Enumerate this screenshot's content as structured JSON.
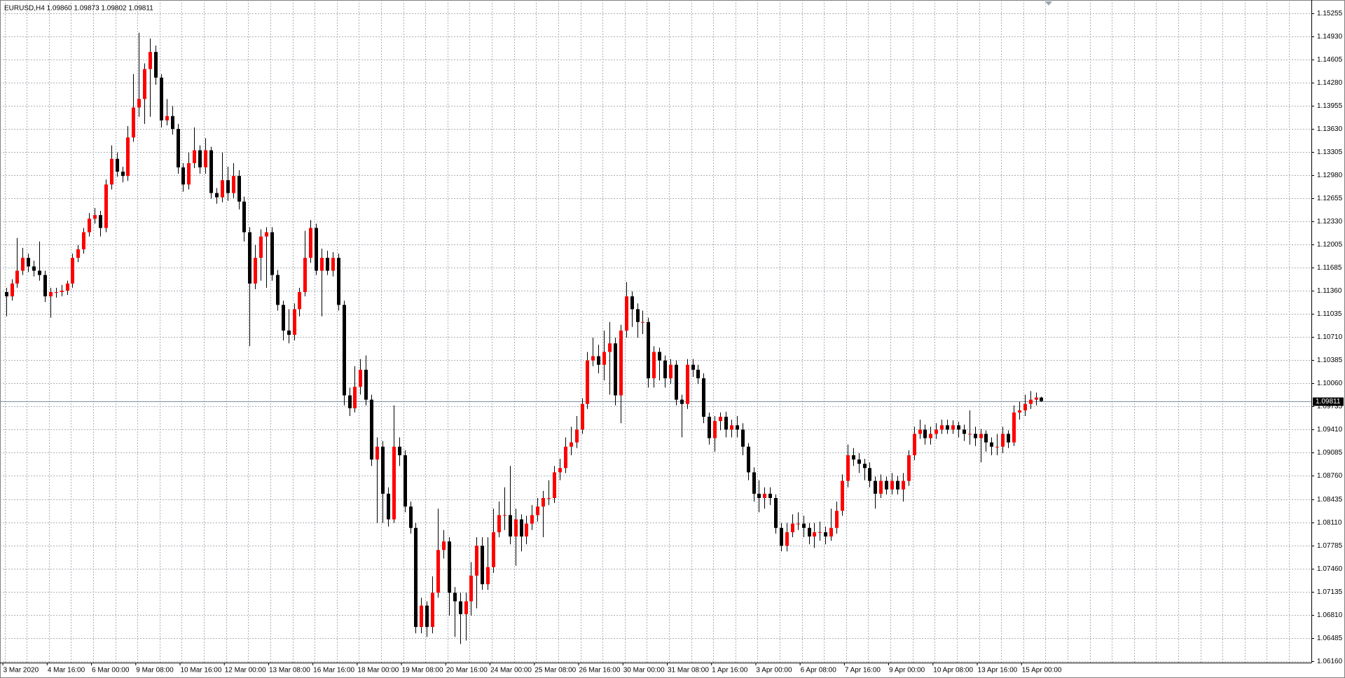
{
  "chart_data": {
    "type": "candlestick",
    "title": "EURUSD,H4  1.09860 1.09873 1.09802 1.09811",
    "x_labels": [
      "3 Mar 2020",
      "4 Mar 16:00",
      "6 Mar 00:00",
      "9 Mar 08:00",
      "10 Mar 16:00",
      "12 Mar 00:00",
      "13 Mar 08:00",
      "16 Mar 16:00",
      "18 Mar 00:00",
      "19 Mar 08:00",
      "20 Mar 16:00",
      "24 Mar 00:00",
      "25 Mar 08:00",
      "26 Mar 16:00",
      "30 Mar 00:00",
      "31 Mar 08:00",
      "1 Apr 16:00",
      "3 Apr 00:00",
      "6 Apr 08:00",
      "7 Apr 16:00",
      "9 Apr 00:00",
      "10 Apr 08:00",
      "13 Apr 16:00",
      "15 Apr 00:00"
    ],
    "open": [
      1.1134,
      1.1128,
      1.1146,
      1.1164,
      1.1182,
      1.117,
      1.1164,
      1.1158,
      1.1128,
      1.1134,
      1.1134,
      1.1136,
      1.1146,
      1.1182,
      1.1194,
      1.1218,
      1.1237,
      1.1242,
      1.1224,
      1.1285,
      1.1321,
      1.1303,
      1.1297,
      1.1351,
      1.1393,
      1.1405,
      1.1447,
      1.1471,
      1.1435,
      1.1375,
      1.1381,
      1.1363,
      1.1309,
      1.1285,
      1.1315,
      1.1333,
      1.1309,
      1.1333,
      1.1273,
      1.1267,
      1.1291,
      1.1273,
      1.1297,
      1.1261,
      1.1218,
      1.1146,
      1.1182,
      1.1212,
      1.1218,
      1.1158,
      1.1116,
      1.108,
      1.1074,
      1.111,
      1.1134,
      1.1182,
      1.1224,
      1.1164,
      1.1182,
      1.1164,
      1.1182,
      1.1116,
      1.0989,
      1.0971,
      1.1001,
      1.1025,
      1.0983,
      1.0899,
      1.0917,
      1.0851,
      1.0815,
      1.0917,
      1.0905,
      1.0833,
      1.0803,
      1.0664,
      1.0694,
      1.0664,
      1.0712,
      1.0772,
      1.0784,
      1.0712,
      1.07,
      1.0682,
      1.07,
      1.0736,
      1.0778,
      1.0724,
      1.0748,
      1.0797,
      1.0821,
      1.0821,
      1.0791,
      1.0815,
      1.0791,
      1.0809,
      1.0821,
      1.0833,
      1.0845,
      1.0845,
      1.0881,
      1.0887,
      1.0917,
      1.0923,
      1.0941,
      1.0977,
      1.1038,
      1.1044,
      1.1032,
      1.105,
      1.1062,
      1.0989,
      1.108,
      1.1128,
      1.111,
      1.1092,
      1.1092,
      1.1013,
      1.105,
      1.1038,
      1.1013,
      1.1032,
      1.0983,
      1.0977,
      1.1032,
      1.1025,
      1.1013,
      1.0959,
      1.0929,
      1.0953,
      1.0959,
      1.0941,
      1.0947,
      1.0941,
      1.0917,
      1.0881,
      1.0851,
      1.0845,
      1.0851,
      1.0845,
      1.0803,
      1.0778,
      1.0797,
      1.0809,
      1.0809,
      1.0803,
      1.0791,
      1.0797,
      1.0797,
      1.0791,
      1.0803,
      1.0827,
      1.0869,
      1.0905,
      1.0899,
      1.0893,
      1.0887,
      1.0869,
      1.0851,
      1.0869,
      1.0857,
      1.0869,
      1.0857,
      1.0869,
      1.0905,
      1.0935,
      1.0941,
      1.0929,
      1.0935,
      1.0941,
      1.0947,
      1.0941,
      1.0947,
      1.0941,
      1.0935,
      1.0935,
      1.0929,
      1.0935,
      1.0923,
      1.0917,
      1.0917,
      1.0935,
      1.0923,
      1.0965,
      1.0968,
      1.0977,
      1.0983,
      1.0986
    ],
    "high": [
      1.114,
      1.1152,
      1.121,
      1.1196,
      1.1188,
      1.1178,
      1.1205,
      1.1164,
      1.114,
      1.114,
      1.1144,
      1.115,
      1.1188,
      1.12,
      1.1224,
      1.1245,
      1.1252,
      1.1248,
      1.1292,
      1.134,
      1.133,
      1.131,
      1.1367,
      1.144,
      1.1498,
      1.1455,
      1.149,
      1.148,
      1.144,
      1.1405,
      1.1395,
      1.137,
      1.1315,
      1.133,
      1.1365,
      1.134,
      1.135,
      1.1338,
      1.128,
      1.133,
      1.131,
      1.1315,
      1.1305,
      1.1268,
      1.1225,
      1.12,
      1.1222,
      1.1225,
      1.1225,
      1.1165,
      1.1122,
      1.111,
      1.1118,
      1.114,
      1.122,
      1.1235,
      1.123,
      1.1195,
      1.1192,
      1.119,
      1.1188,
      1.1122,
      1.1,
      1.103,
      1.104,
      1.1045,
      1.099,
      1.093,
      1.0925,
      1.086,
      1.0975,
      1.093,
      1.0912,
      1.084,
      1.081,
      1.0705,
      1.07,
      1.0735,
      1.083,
      1.08,
      1.079,
      1.072,
      1.0712,
      1.0712,
      1.0755,
      1.079,
      1.079,
      1.079,
      1.083,
      1.084,
      1.086,
      1.089,
      1.083,
      1.0822,
      1.082,
      1.0835,
      1.0845,
      1.0855,
      1.087,
      1.089,
      1.09,
      1.093,
      1.0945,
      1.096,
      1.0985,
      1.105,
      1.107,
      1.106,
      1.108,
      1.1092,
      1.107,
      1.1088,
      1.1148,
      1.1135,
      1.1118,
      1.1108,
      1.1098,
      1.1058,
      1.1056,
      1.1045,
      1.104,
      1.1038,
      1.099,
      1.104,
      1.104,
      1.1032,
      1.102,
      1.0965,
      1.096,
      1.0965,
      1.0966,
      1.0955,
      1.096,
      1.095,
      1.0922,
      1.0888,
      1.087,
      1.086,
      1.086,
      1.085,
      1.081,
      1.081,
      1.0822,
      1.0825,
      1.082,
      1.081,
      1.081,
      1.0812,
      1.0805,
      1.083,
      1.084,
      1.0878,
      1.092,
      1.0915,
      1.0908,
      1.09,
      1.0895,
      1.0875,
      1.0878,
      1.0875,
      1.088,
      1.0876,
      1.088,
      1.0912,
      1.0945,
      1.0955,
      1.0948,
      1.0945,
      1.095,
      1.0955,
      1.0955,
      1.0954,
      1.0952,
      1.0948,
      1.0968,
      1.0945,
      1.0942,
      1.094,
      1.093,
      1.0935,
      1.0945,
      1.094,
      1.0975,
      1.098,
      1.099,
      1.0995,
      1.0993,
      1.0987
    ],
    "low": [
      1.11,
      1.1122,
      1.114,
      1.1158,
      1.1162,
      1.1156,
      1.115,
      1.112,
      1.1098,
      1.1126,
      1.1128,
      1.113,
      1.114,
      1.1176,
      1.1188,
      1.1212,
      1.123,
      1.1212,
      1.1218,
      1.1278,
      1.1296,
      1.1288,
      1.129,
      1.1345,
      1.138,
      1.137,
      1.138,
      1.1425,
      1.1365,
      1.1368,
      1.1355,
      1.13,
      1.1275,
      1.1278,
      1.1308,
      1.13,
      1.13,
      1.1265,
      1.1258,
      1.126,
      1.1262,
      1.1266,
      1.125,
      1.1205,
      1.1058,
      1.1138,
      1.115,
      1.114,
      1.115,
      1.1108,
      1.1066,
      1.1062,
      1.1066,
      1.11,
      1.1128,
      1.1175,
      1.1158,
      1.11,
      1.1158,
      1.1156,
      1.1108,
      1.0975,
      1.096,
      1.0965,
      1.099,
      1.0975,
      1.089,
      1.081,
      1.081,
      1.0805,
      1.081,
      1.089,
      1.0825,
      1.0795,
      1.0655,
      1.0655,
      1.065,
      1.0655,
      1.0705,
      1.076,
      1.068,
      1.065,
      1.064,
      1.0645,
      1.068,
      1.069,
      1.0716,
      1.0716,
      1.074,
      1.079,
      1.08,
      1.078,
      1.075,
      1.077,
      1.078,
      1.08,
      1.0812,
      1.079,
      1.0835,
      1.0838,
      1.087,
      1.088,
      1.0905,
      1.0915,
      1.0935,
      1.097,
      1.103,
      1.102,
      1.101,
      1.099,
      1.0975,
      1.095,
      1.107,
      1.1085,
      1.107,
      1.1075,
      1.1,
      1.1,
      1.101,
      1.1,
      1.1005,
      1.0975,
      1.093,
      1.097,
      1.1015,
      1.1005,
      1.095,
      1.092,
      1.091,
      1.094,
      1.093,
      1.093,
      1.093,
      1.0905,
      1.087,
      1.084,
      1.0825,
      1.083,
      1.0835,
      1.0795,
      1.077,
      1.077,
      1.079,
      1.08,
      1.079,
      1.078,
      1.0775,
      1.0785,
      1.078,
      1.0785,
      1.0795,
      1.082,
      1.086,
      1.089,
      1.088,
      1.087,
      1.086,
      1.083,
      1.0845,
      1.085,
      1.085,
      1.085,
      1.084,
      1.0862,
      1.0898,
      1.0928,
      1.092,
      1.092,
      1.0928,
      1.0935,
      1.0935,
      1.0935,
      1.093,
      1.0925,
      1.092,
      1.0918,
      1.0895,
      1.091,
      1.0905,
      1.0905,
      1.0908,
      1.0915,
      1.0918,
      1.0955,
      1.096,
      1.097,
      1.0975,
      1.098
    ],
    "close": [
      1.1128,
      1.1146,
      1.1164,
      1.1182,
      1.117,
      1.1164,
      1.1158,
      1.1128,
      1.1134,
      1.1134,
      1.1136,
      1.1146,
      1.1182,
      1.1194,
      1.1218,
      1.1237,
      1.1242,
      1.1224,
      1.1285,
      1.1321,
      1.1303,
      1.1297,
      1.1351,
      1.1393,
      1.1405,
      1.1447,
      1.1471,
      1.1435,
      1.1375,
      1.1381,
      1.1363,
      1.1309,
      1.1285,
      1.1315,
      1.1333,
      1.1309,
      1.1333,
      1.1273,
      1.1267,
      1.1291,
      1.1273,
      1.1297,
      1.1261,
      1.1218,
      1.1146,
      1.1182,
      1.1212,
      1.1218,
      1.1158,
      1.1116,
      1.108,
      1.1074,
      1.111,
      1.1134,
      1.1182,
      1.1224,
      1.1164,
      1.1182,
      1.1164,
      1.1182,
      1.1116,
      1.0989,
      1.0971,
      1.1001,
      1.1025,
      1.0983,
      1.0899,
      1.0917,
      1.0851,
      1.0815,
      1.0917,
      1.0905,
      1.0833,
      1.0803,
      1.0664,
      1.0694,
      1.0664,
      1.0712,
      1.0772,
      1.0784,
      1.0712,
      1.07,
      1.0682,
      1.07,
      1.0736,
      1.0778,
      1.0724,
      1.0748,
      1.0797,
      1.0821,
      1.0821,
      1.0791,
      1.0815,
      1.0791,
      1.0809,
      1.0821,
      1.0833,
      1.0845,
      1.0845,
      1.0881,
      1.0887,
      1.0917,
      1.0923,
      1.0941,
      1.0977,
      1.1038,
      1.1044,
      1.1032,
      1.105,
      1.1062,
      1.0989,
      1.108,
      1.1128,
      1.111,
      1.1092,
      1.1092,
      1.1013,
      1.105,
      1.1038,
      1.1013,
      1.1032,
      1.0983,
      1.0977,
      1.1032,
      1.1025,
      1.1013,
      1.0959,
      1.0929,
      1.0953,
      1.0959,
      1.0941,
      1.0947,
      1.0941,
      1.0917,
      1.0881,
      1.0851,
      1.0845,
      1.0851,
      1.0845,
      1.0803,
      1.0778,
      1.0797,
      1.0809,
      1.0809,
      1.0803,
      1.0791,
      1.0797,
      1.0797,
      1.0791,
      1.0803,
      1.0827,
      1.0869,
      1.0905,
      1.0899,
      1.0893,
      1.0887,
      1.0869,
      1.0851,
      1.0869,
      1.0857,
      1.0869,
      1.0857,
      1.0869,
      1.0905,
      1.0935,
      1.0941,
      1.0929,
      1.0935,
      1.0941,
      1.0947,
      1.0941,
      1.0947,
      1.0941,
      1.0935,
      1.0935,
      1.0929,
      1.0935,
      1.0923,
      1.0917,
      1.0917,
      1.0935,
      1.0923,
      1.0965,
      1.0968,
      1.0977,
      1.0983,
      1.0986,
      1.0981
    ],
    "up_color": "#ff0000",
    "down_color": "#000000",
    "wick_color": "#000000",
    "ylim": [
      1.0614,
      1.1539
    ],
    "yticks": [
      {
        "value": 1.15255,
        "label": "1.15255"
      },
      {
        "value": 1.1493,
        "label": "1.14930"
      },
      {
        "value": 1.14605,
        "label": "1.14605"
      },
      {
        "value": 1.1428,
        "label": "1.14280"
      },
      {
        "value": 1.13955,
        "label": "1.13955"
      },
      {
        "value": 1.1363,
        "label": "1.13630"
      },
      {
        "value": 1.13305,
        "label": "1.13305"
      },
      {
        "value": 1.1298,
        "label": "1.12980"
      },
      {
        "value": 1.12655,
        "label": "1.12655"
      },
      {
        "value": 1.1233,
        "label": "1.12330"
      },
      {
        "value": 1.12005,
        "label": "1.12005"
      },
      {
        "value": 1.11685,
        "label": "1.11685"
      },
      {
        "value": 1.1136,
        "label": "1.11360"
      },
      {
        "value": 1.11035,
        "label": "1.11035"
      },
      {
        "value": 1.1071,
        "label": "1.10710"
      },
      {
        "value": 1.10385,
        "label": "1.10385"
      },
      {
        "value": 1.1006,
        "label": "1.10060"
      },
      {
        "value": 1.09735,
        "label": "1.09735"
      },
      {
        "value": 1.0941,
        "label": "1.09410"
      },
      {
        "value": 1.09085,
        "label": "1.09085"
      },
      {
        "value": 1.0876,
        "label": "1.08760"
      },
      {
        "value": 1.08435,
        "label": "1.08435"
      },
      {
        "value": 1.0811,
        "label": "1.08110"
      },
      {
        "value": 1.07785,
        "label": "1.07785"
      },
      {
        "value": 1.0746,
        "label": "1.07460"
      },
      {
        "value": 1.07135,
        "label": "1.07135"
      },
      {
        "value": 1.0681,
        "label": "1.06810"
      },
      {
        "value": 1.06485,
        "label": "1.06485"
      },
      {
        "value": 1.0616,
        "label": "1.06160"
      }
    ],
    "grid": true,
    "current_price": {
      "value": 1.09811,
      "label": "1.09811"
    },
    "current_price_color": "#7f8fa6"
  }
}
